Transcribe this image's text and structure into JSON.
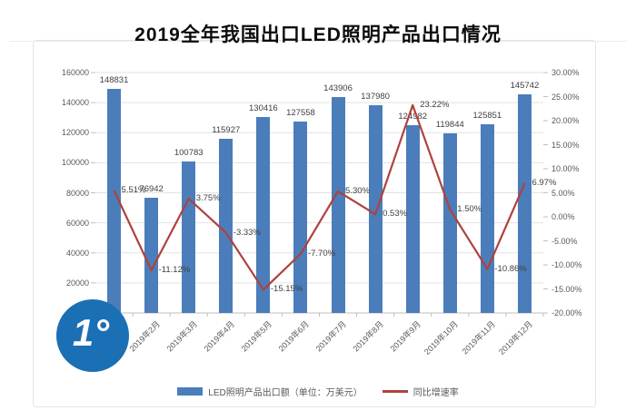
{
  "watermark": {
    "text": "1°"
  },
  "chart_data": {
    "type": "combo-bar-line",
    "title": "2019全年我国出口LED照明产品出口情况",
    "categories": [
      "2019年1月",
      "2019年2月",
      "2019年3月",
      "2019年4月",
      "2019年5月",
      "2019年6月",
      "2019年7月",
      "2019年8月",
      "2019年9月",
      "2019年10月",
      "2019年11月",
      "2019年12月"
    ],
    "series": [
      {
        "name": "LED照明产品出口额（单位：万美元）",
        "type": "bar",
        "axis": "left",
        "color": "#4b7dbb",
        "values": [
          148831,
          76942,
          100783,
          115927,
          130416,
          127558,
          143906,
          137980,
          124982,
          119844,
          125851,
          145742
        ]
      },
      {
        "name": "同比增速率",
        "type": "line",
        "axis": "right",
        "color": "#ae423d",
        "unit": "%",
        "values": [
          5.51,
          -11.12,
          3.75,
          -3.33,
          -15.15,
          -7.7,
          5.3,
          0.53,
          23.22,
          1.5,
          -10.86,
          6.97
        ]
      }
    ],
    "left_axis": {
      "min": 0,
      "max": 160000,
      "step": 20000,
      "ticks": [
        "160000",
        "140000",
        "120000",
        "100000",
        "80000",
        "60000",
        "40000",
        "20000",
        "0"
      ]
    },
    "right_axis": {
      "min": -20,
      "max": 30,
      "step": 5,
      "ticks": [
        "30.00%",
        "25.00%",
        "20.00%",
        "15.00%",
        "10.00%",
        "5.00%",
        "0.00%",
        "-5.00%",
        "-10.00%",
        "-15.00%",
        "-20.00%"
      ]
    },
    "legend_position": "bottom",
    "grid": true
  }
}
